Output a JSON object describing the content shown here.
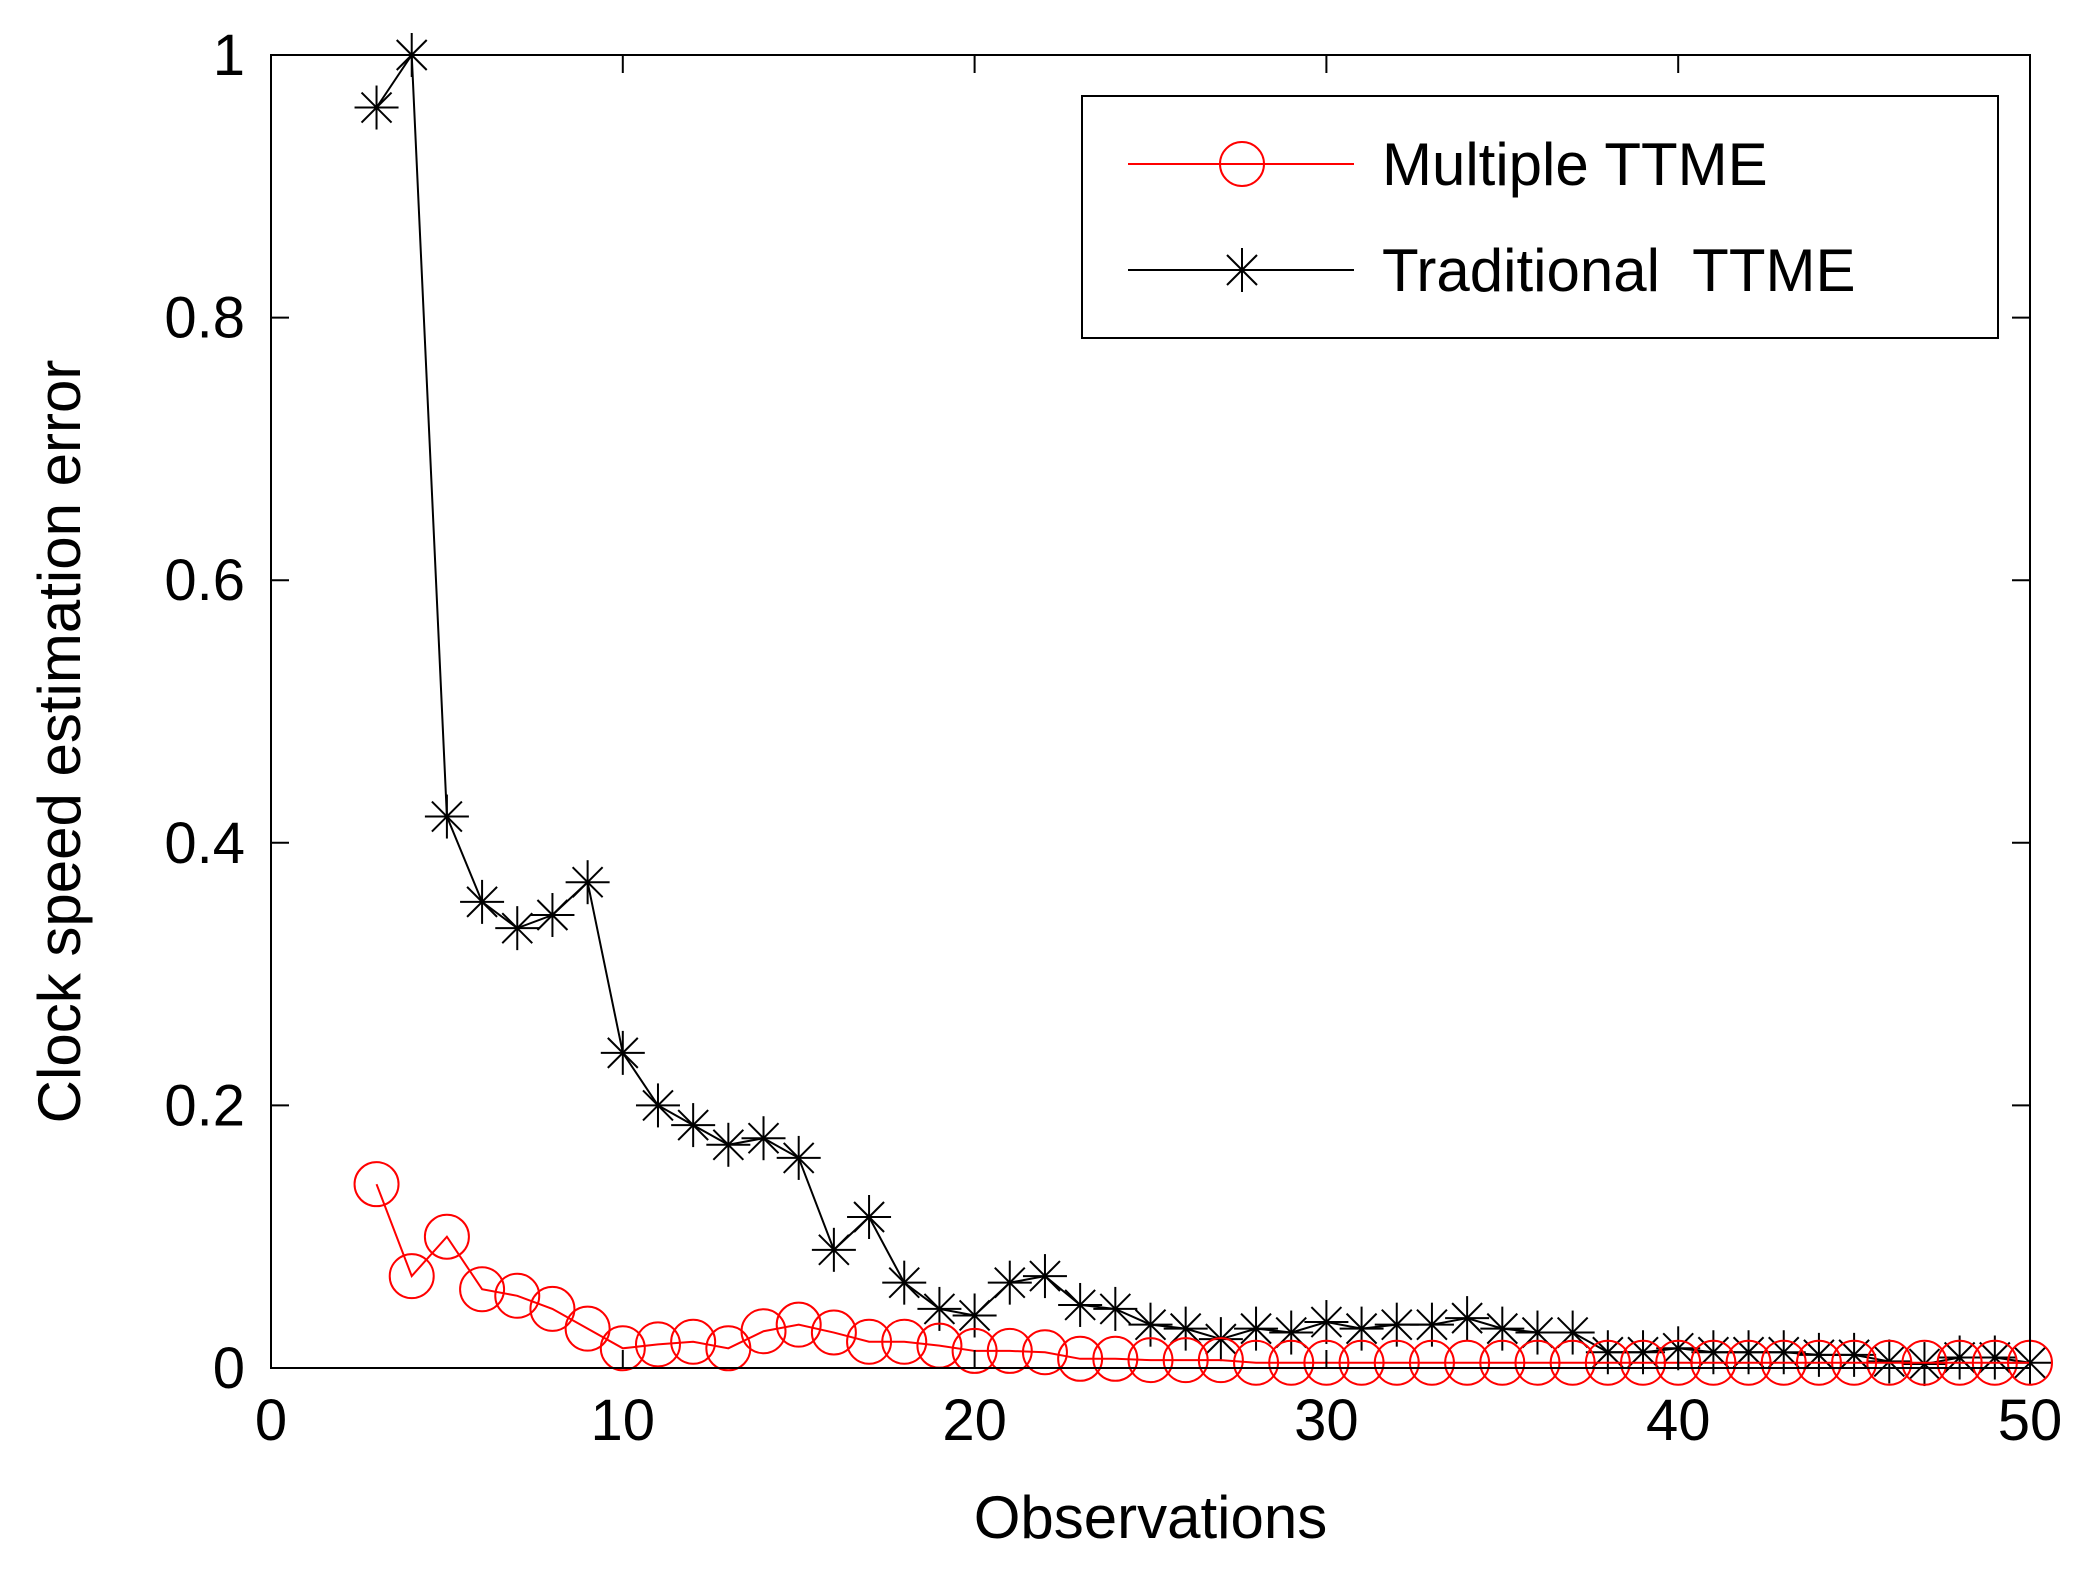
{
  "chart_data": {
    "type": "line",
    "title": "",
    "xlabel": "Observations",
    "ylabel": "Clock speed estimation error",
    "xlim": [
      0,
      50
    ],
    "ylim": [
      0,
      1
    ],
    "xticks": [
      0,
      10,
      20,
      30,
      40,
      50
    ],
    "yticks": [
      0,
      0.2,
      0.4,
      0.6,
      0.8,
      1
    ],
    "ytick_labels": [
      "0",
      "0.2",
      "0.4",
      "0.6",
      "0.8",
      "1"
    ],
    "grid": false,
    "legend_position": "top-right",
    "series": [
      {
        "name": "Multiple TTME",
        "color": "#ff0000",
        "marker": "circle",
        "x": [
          3,
          4,
          5,
          6,
          7,
          8,
          9,
          10,
          11,
          12,
          13,
          14,
          15,
          16,
          17,
          18,
          19,
          20,
          21,
          22,
          23,
          24,
          25,
          26,
          27,
          28,
          29,
          30,
          31,
          32,
          33,
          34,
          35,
          36,
          37,
          38,
          39,
          40,
          41,
          42,
          43,
          44,
          45,
          46,
          47,
          48,
          49,
          50
        ],
        "values": [
          0.14,
          0.07,
          0.1,
          0.06,
          0.055,
          0.045,
          0.03,
          0.015,
          0.018,
          0.02,
          0.015,
          0.028,
          0.033,
          0.027,
          0.02,
          0.02,
          0.017,
          0.013,
          0.013,
          0.012,
          0.007,
          0.007,
          0.006,
          0.006,
          0.006,
          0.004,
          0.004,
          0.004,
          0.004,
          0.004,
          0.004,
          0.004,
          0.004,
          0.004,
          0.004,
          0.004,
          0.004,
          0.004,
          0.004,
          0.004,
          0.004,
          0.004,
          0.004,
          0.004,
          0.004,
          0.004,
          0.004,
          0.004
        ]
      },
      {
        "name": "Traditional  TTME",
        "color": "#000000",
        "marker": "star",
        "x": [
          3,
          4,
          5,
          6,
          7,
          8,
          9,
          10,
          11,
          12,
          13,
          14,
          15,
          16,
          17,
          18,
          19,
          20,
          21,
          22,
          23,
          24,
          25,
          26,
          27,
          28,
          29,
          30,
          31,
          32,
          33,
          34,
          35,
          36,
          37,
          38,
          39,
          40,
          41,
          42,
          43,
          44,
          45,
          46,
          47,
          48,
          49,
          50
        ],
        "values": [
          0.96,
          1.0,
          0.42,
          0.355,
          0.335,
          0.345,
          0.37,
          0.24,
          0.2,
          0.185,
          0.17,
          0.175,
          0.16,
          0.09,
          0.115,
          0.065,
          0.045,
          0.04,
          0.065,
          0.07,
          0.048,
          0.045,
          0.033,
          0.03,
          0.022,
          0.03,
          0.027,
          0.035,
          0.03,
          0.033,
          0.033,
          0.038,
          0.03,
          0.027,
          0.027,
          0.012,
          0.012,
          0.015,
          0.012,
          0.012,
          0.012,
          0.01,
          0.01,
          0.005,
          0.003,
          0.008,
          0.008,
          0.004
        ]
      }
    ]
  }
}
